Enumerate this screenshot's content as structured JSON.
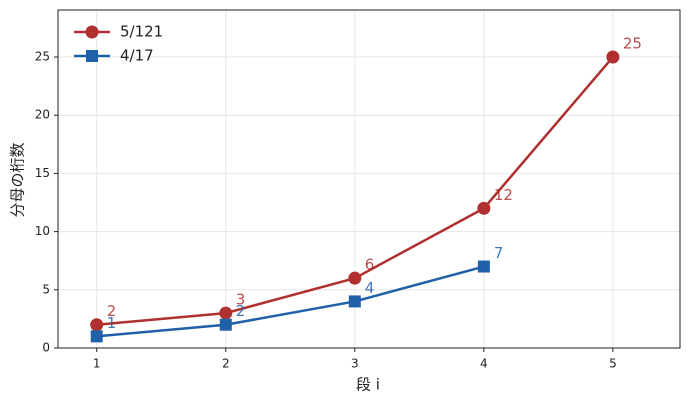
{
  "chart_data": {
    "type": "line",
    "x_label": "段 i",
    "y_label": "分母の桁数",
    "x": [
      1,
      2,
      3,
      4,
      5
    ],
    "series": [
      {
        "name": "5/121",
        "color": "#b03030",
        "marker": "circle",
        "values": [
          2,
          3,
          6,
          12,
          25
        ]
      },
      {
        "name": "4/17",
        "color": "#2060a8",
        "marker": "square",
        "values": [
          1,
          2,
          4,
          7,
          null
        ]
      }
    ],
    "xlim": [
      0.7,
      5.52
    ],
    "ylim": [
      0,
      29.04
    ],
    "xticks": [
      1,
      2,
      3,
      4,
      5
    ],
    "yticks": [
      0,
      5,
      10,
      15,
      20,
      25
    ],
    "grid": true,
    "legend": "upper left"
  }
}
